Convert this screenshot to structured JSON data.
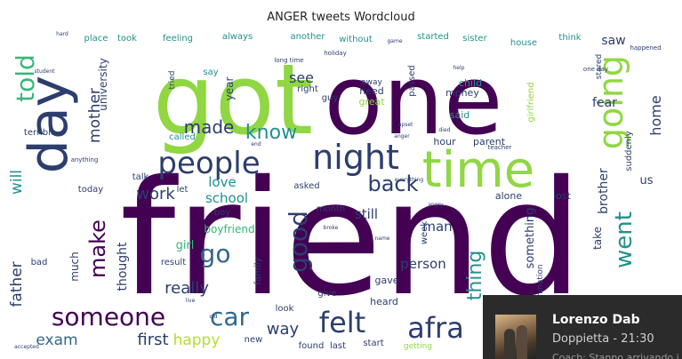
{
  "chart_data": {
    "type": "wordcloud",
    "title": "ANGER tweets Wordcloud",
    "words": [
      {
        "text": "friend",
        "weight": 100
      },
      {
        "text": "one",
        "weight": 82
      },
      {
        "text": "got",
        "weight": 78
      },
      {
        "text": "day",
        "weight": 52
      },
      {
        "text": "time",
        "weight": 48
      },
      {
        "text": "night",
        "weight": 38
      },
      {
        "text": "people",
        "weight": 36
      },
      {
        "text": "going",
        "weight": 30
      },
      {
        "text": "someone",
        "weight": 30
      },
      {
        "text": "felt",
        "weight": 30
      },
      {
        "text": "afra",
        "weight": 30
      },
      {
        "text": "told",
        "weight": 26
      },
      {
        "text": "good",
        "weight": 26
      },
      {
        "text": "car",
        "weight": 26
      },
      {
        "text": "know",
        "weight": 24
      },
      {
        "text": "back",
        "weight": 24
      },
      {
        "text": "went",
        "weight": 22
      },
      {
        "text": "make",
        "weight": 22
      },
      {
        "text": "go",
        "weight": 22
      },
      {
        "text": "made",
        "weight": 20
      },
      {
        "text": "really",
        "weight": 18
      },
      {
        "text": "thing",
        "weight": 18
      },
      {
        "text": "mother",
        "weight": 17
      },
      {
        "text": "work",
        "weight": 17
      },
      {
        "text": "way",
        "weight": 17
      },
      {
        "text": "first",
        "weight": 16
      },
      {
        "text": "happy",
        "weight": 15
      },
      {
        "text": "exam",
        "weight": 15
      },
      {
        "text": "father",
        "weight": 15
      },
      {
        "text": "will",
        "weight": 14
      },
      {
        "text": "love",
        "weight": 14
      },
      {
        "text": "home",
        "weight": 14
      },
      {
        "text": "see",
        "weight": 14
      },
      {
        "text": "fear",
        "weight": 13
      },
      {
        "text": "person",
        "weight": 13
      },
      {
        "text": "school",
        "weight": 13
      },
      {
        "text": "girl",
        "weight": 12
      },
      {
        "text": "man",
        "weight": 12
      },
      {
        "text": "thought",
        "weight": 12
      },
      {
        "text": "still",
        "weight": 12
      },
      {
        "text": "brother",
        "weight": 12
      },
      {
        "text": "much",
        "weight": 11
      },
      {
        "text": "something",
        "weight": 11
      },
      {
        "text": "us",
        "weight": 11
      },
      {
        "text": "saw",
        "weight": 11
      },
      {
        "text": "year",
        "weight": 10
      },
      {
        "text": "take",
        "weight": 10
      },
      {
        "text": "boyfriend",
        "weight": 10
      },
      {
        "text": "university",
        "weight": 10
      },
      {
        "text": "always",
        "weight": 8
      },
      {
        "text": "feeling",
        "weight": 8
      },
      {
        "text": "took",
        "weight": 8
      },
      {
        "text": "place",
        "weight": 8
      },
      {
        "text": "another",
        "weight": 8
      },
      {
        "text": "without",
        "weight": 8
      },
      {
        "text": "started",
        "weight": 8
      },
      {
        "text": "sister",
        "weight": 8
      },
      {
        "text": "house",
        "weight": 8
      },
      {
        "text": "think",
        "weight": 8
      },
      {
        "text": "said",
        "weight": 8
      },
      {
        "text": "girlfriend",
        "weight": 8
      },
      {
        "text": "need",
        "weight": 8
      },
      {
        "text": "great",
        "weight": 8
      },
      {
        "text": "money",
        "weight": 8
      },
      {
        "text": "child",
        "weight": 8
      },
      {
        "text": "hour",
        "weight": 8
      },
      {
        "text": "parent",
        "weight": 8
      },
      {
        "text": "alone",
        "weight": 8
      },
      {
        "text": "lost",
        "weight": 8
      },
      {
        "text": "gave",
        "weight": 8
      },
      {
        "text": "heard",
        "weight": 8
      },
      {
        "text": "found",
        "weight": 8
      },
      {
        "text": "last",
        "weight": 8
      },
      {
        "text": "start",
        "weight": 8
      },
      {
        "text": "new",
        "weight": 8
      },
      {
        "text": "terrible",
        "weight": 8
      },
      {
        "text": "today",
        "weight": 8
      },
      {
        "text": "called",
        "weight": 8
      },
      {
        "text": "boy",
        "weight": 8
      },
      {
        "text": "give",
        "weight": 8
      },
      {
        "text": "look",
        "weight": 8
      },
      {
        "text": "bad",
        "weight": 8
      },
      {
        "text": "asked",
        "weight": 8
      },
      {
        "text": "month",
        "weight": 8
      },
      {
        "text": "week",
        "weight": 8
      },
      {
        "text": "family",
        "weight": 8
      },
      {
        "text": "result",
        "weight": 8
      },
      {
        "text": "let",
        "weight": 8
      },
      {
        "text": "say",
        "weight": 7
      },
      {
        "text": "right",
        "weight": 7
      },
      {
        "text": "away",
        "weight": 7
      },
      {
        "text": "guy",
        "weight": 7
      },
      {
        "text": "talk",
        "weight": 7
      },
      {
        "text": "tried",
        "weight": 7
      },
      {
        "text": "passed",
        "weight": 7
      },
      {
        "text": "stared",
        "weight": 7
      },
      {
        "text": "suddenly",
        "weight": 7
      },
      {
        "text": "amination",
        "weight": 7
      },
      {
        "text": "getting",
        "weight": 7
      },
      {
        "text": "long time",
        "weight": 5
      },
      {
        "text": "one day",
        "weight": 5
      },
      {
        "text": "happened",
        "weight": 5
      },
      {
        "text": "teacher",
        "weight": 5
      },
      {
        "text": "anything",
        "weight": 5
      },
      {
        "text": "holiday",
        "weight": 5
      },
      {
        "text": "hard",
        "weight": 5
      },
      {
        "text": "student",
        "weight": 5
      },
      {
        "text": "help",
        "weight": 5
      },
      {
        "text": "died",
        "weight": 5
      },
      {
        "text": "live",
        "weight": 5
      },
      {
        "text": "upset",
        "weight": 5
      },
      {
        "text": "broke",
        "weight": 5
      },
      {
        "text": "game",
        "weight": 5
      },
      {
        "text": "anger",
        "weight": 5
      },
      {
        "text": "everything",
        "weight": 5
      },
      {
        "text": "end",
        "weight": 5
      },
      {
        "text": "name",
        "weight": 5
      },
      {
        "text": "angry",
        "weight": 5
      },
      {
        "text": "old",
        "weight": 5
      },
      {
        "text": "accepted",
        "weight": 5
      }
    ]
  },
  "notification": {
    "name": "Lorenzo Dab",
    "subtitle": "Doppietta - 21:30",
    "preview": "Coach: Stanno arrivando i"
  }
}
